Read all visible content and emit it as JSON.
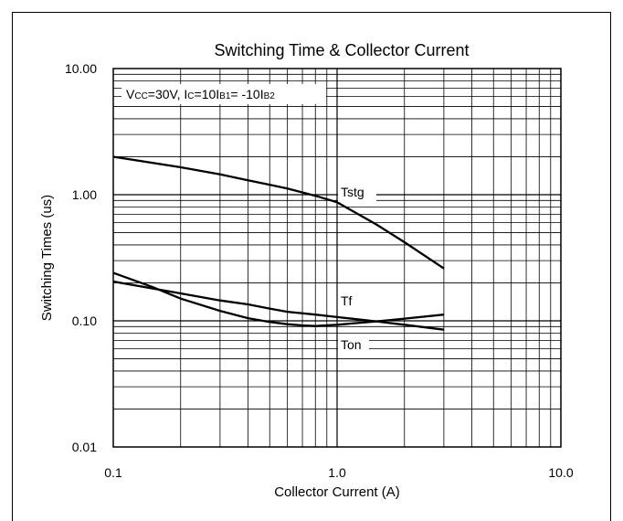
{
  "chart_data": {
    "type": "line",
    "title": "Switching Time & Collector Current",
    "xlabel": "Collector Current (A)",
    "ylabel": "Switching Times (us)",
    "xscale": "log",
    "yscale": "log",
    "xlim": [
      0.1,
      10.0
    ],
    "ylim": [
      0.01,
      10.0
    ],
    "x_tick_labels": [
      "0.1",
      "1.0",
      "10.0"
    ],
    "y_tick_labels": [
      "0.01",
      "0.10",
      "1.00",
      "10.00"
    ],
    "grid": true,
    "condition": {
      "vcc": "CC",
      "vcc_value": "=30V, ",
      "ic": "C",
      "ib1_expr": "=10I",
      "ib1": "B1",
      "ib2_expr": "= -10I",
      "ib2": "B2"
    },
    "series": [
      {
        "name": "Tstg",
        "x": [
          0.1,
          0.2,
          0.3,
          0.4,
          0.5,
          0.6,
          0.8,
          1.0,
          1.5,
          2.0,
          3.0
        ],
        "values": [
          2.0,
          1.65,
          1.45,
          1.3,
          1.2,
          1.12,
          0.98,
          0.87,
          0.58,
          0.42,
          0.26
        ]
      },
      {
        "name": "Tf",
        "x": [
          0.1,
          0.2,
          0.3,
          0.4,
          0.5,
          0.6,
          0.8,
          1.0,
          1.5,
          2.0,
          3.0
        ],
        "values": [
          0.205,
          0.165,
          0.145,
          0.135,
          0.125,
          0.118,
          0.112,
          0.107,
          0.099,
          0.093,
          0.085
        ]
      },
      {
        "name": "Ton",
        "x": [
          0.1,
          0.15,
          0.2,
          0.3,
          0.4,
          0.5,
          0.6,
          0.7,
          0.8,
          1.0,
          1.5,
          2.0,
          3.0
        ],
        "values": [
          0.24,
          0.185,
          0.15,
          0.12,
          0.105,
          0.098,
          0.094,
          0.092,
          0.091,
          0.093,
          0.099,
          0.104,
          0.112
        ]
      }
    ]
  }
}
